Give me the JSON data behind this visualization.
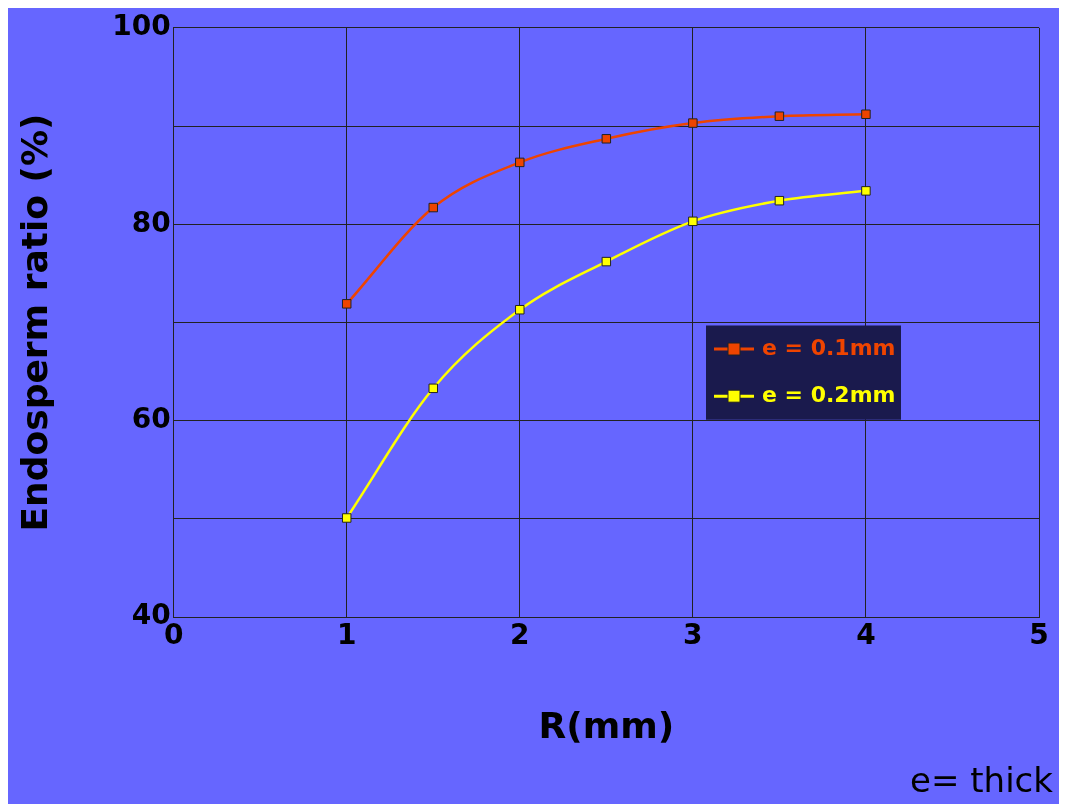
{
  "chart_data": {
    "type": "line",
    "xlabel": "R(mm)",
    "ylabel": "Endosperm ratio (%)",
    "x": [
      1,
      1.5,
      2,
      2.5,
      3,
      3.5,
      4
    ],
    "series": [
      {
        "name": "e = 0.1mm",
        "color": "#ee4400",
        "values": [
          71.9,
          81.7,
          86.3,
          88.7,
          90.3,
          91.0,
          91.2
        ]
      },
      {
        "name": "e = 0.2mm",
        "color": "#ffff00",
        "values": [
          50.1,
          63.3,
          71.3,
          76.2,
          80.3,
          82.4,
          83.4
        ]
      }
    ],
    "xlim": [
      0,
      5
    ],
    "xticks": [
      0,
      1,
      2,
      3,
      4,
      5
    ],
    "ylim": [
      40,
      100
    ],
    "yticks": [
      40,
      {
        "value": 50,
        "label": null
      },
      60,
      {
        "value": 70,
        "label": null
      },
      80,
      {
        "value": 90,
        "label": null
      },
      100
    ],
    "grid": true,
    "legend": "right",
    "marker": "square",
    "line_style": "solid",
    "annotations": [
      "e= thick"
    ]
  }
}
